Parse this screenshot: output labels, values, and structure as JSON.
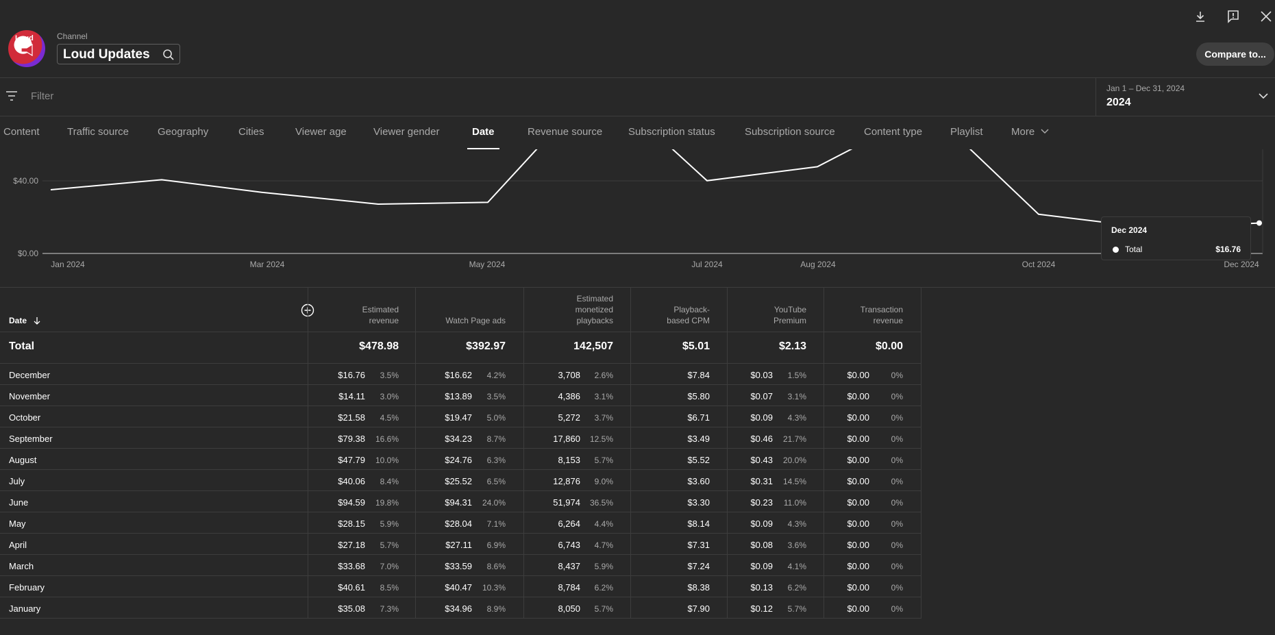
{
  "header": {
    "channel_label": "Channel",
    "channel_name": "Loud Updates",
    "avatar_text": "Loud",
    "compare_label": "Compare to..."
  },
  "filter": {
    "placeholder": "Filter"
  },
  "date_picker": {
    "range": "Jan 1 – Dec 31, 2024",
    "value": "2024"
  },
  "tabs": [
    {
      "label": "Content",
      "active": false
    },
    {
      "label": "Traffic source",
      "active": false
    },
    {
      "label": "Geography",
      "active": false
    },
    {
      "label": "Cities",
      "active": false
    },
    {
      "label": "Viewer age",
      "active": false
    },
    {
      "label": "Viewer gender",
      "active": false
    },
    {
      "label": "Date",
      "active": true
    },
    {
      "label": "Revenue source",
      "active": false
    },
    {
      "label": "Subscription status",
      "active": false
    },
    {
      "label": "Subscription source",
      "active": false
    },
    {
      "label": "Content type",
      "active": false
    },
    {
      "label": "Playlist",
      "active": false
    },
    {
      "label": "More",
      "active": false
    }
  ],
  "chart_data": {
    "type": "line",
    "x": [
      "Jan 2024",
      "Feb 2024",
      "Mar 2024",
      "Apr 2024",
      "May 2024",
      "Jun 2024",
      "Jul 2024",
      "Aug 2024",
      "Sep 2024",
      "Oct 2024",
      "Nov 2024",
      "Dec 2024"
    ],
    "x_tick_labels": [
      "Jan 2024",
      "Mar 2024",
      "May 2024",
      "Jul 2024",
      "Aug 2024",
      "Oct 2024",
      "Dec 2024"
    ],
    "series": [
      {
        "name": "Total",
        "values": [
          35.08,
          40.61,
          33.68,
          27.18,
          28.15,
          94.59,
          40.06,
          47.79,
          79.38,
          21.58,
          14.11,
          16.76
        ]
      }
    ],
    "y_tick_labels": [
      "$0.00",
      "$40.00"
    ],
    "grid": true,
    "tooltip": {
      "title": "Dec 2024",
      "label": "Total",
      "value": "$16.76"
    }
  },
  "table": {
    "date_header": "Date",
    "columns": [
      {
        "label": "Estimated revenue",
        "total": "$478.98"
      },
      {
        "label": "Watch Page ads",
        "total": "$392.97"
      },
      {
        "label": "Estimated monetized playbacks",
        "total": "142,507"
      },
      {
        "label": "Playback-based CPM",
        "total": "$5.01"
      },
      {
        "label": "YouTube Premium",
        "total": "$2.13"
      },
      {
        "label": "Transaction revenue",
        "total": "$0.00"
      }
    ],
    "total_label": "Total",
    "rows": [
      {
        "month": "December",
        "cells": [
          [
            "$16.76",
            "3.5%"
          ],
          [
            "$16.62",
            "4.2%"
          ],
          [
            "3,708",
            "2.6%"
          ],
          [
            "$7.84",
            ""
          ],
          [
            "$0.03",
            "1.5%"
          ],
          [
            "$0.00",
            "0%"
          ]
        ]
      },
      {
        "month": "November",
        "cells": [
          [
            "$14.11",
            "3.0%"
          ],
          [
            "$13.89",
            "3.5%"
          ],
          [
            "4,386",
            "3.1%"
          ],
          [
            "$5.80",
            ""
          ],
          [
            "$0.07",
            "3.1%"
          ],
          [
            "$0.00",
            "0%"
          ]
        ]
      },
      {
        "month": "October",
        "cells": [
          [
            "$21.58",
            "4.5%"
          ],
          [
            "$19.47",
            "5.0%"
          ],
          [
            "5,272",
            "3.7%"
          ],
          [
            "$6.71",
            ""
          ],
          [
            "$0.09",
            "4.3%"
          ],
          [
            "$0.00",
            "0%"
          ]
        ]
      },
      {
        "month": "September",
        "cells": [
          [
            "$79.38",
            "16.6%"
          ],
          [
            "$34.23",
            "8.7%"
          ],
          [
            "17,860",
            "12.5%"
          ],
          [
            "$3.49",
            ""
          ],
          [
            "$0.46",
            "21.7%"
          ],
          [
            "$0.00",
            "0%"
          ]
        ]
      },
      {
        "month": "August",
        "cells": [
          [
            "$47.79",
            "10.0%"
          ],
          [
            "$24.76",
            "6.3%"
          ],
          [
            "8,153",
            "5.7%"
          ],
          [
            "$5.52",
            ""
          ],
          [
            "$0.43",
            "20.0%"
          ],
          [
            "$0.00",
            "0%"
          ]
        ]
      },
      {
        "month": "July",
        "cells": [
          [
            "$40.06",
            "8.4%"
          ],
          [
            "$25.52",
            "6.5%"
          ],
          [
            "12,876",
            "9.0%"
          ],
          [
            "$3.60",
            ""
          ],
          [
            "$0.31",
            "14.5%"
          ],
          [
            "$0.00",
            "0%"
          ]
        ]
      },
      {
        "month": "June",
        "cells": [
          [
            "$94.59",
            "19.8%"
          ],
          [
            "$94.31",
            "24.0%"
          ],
          [
            "51,974",
            "36.5%"
          ],
          [
            "$3.30",
            ""
          ],
          [
            "$0.23",
            "11.0%"
          ],
          [
            "$0.00",
            "0%"
          ]
        ]
      },
      {
        "month": "May",
        "cells": [
          [
            "$28.15",
            "5.9%"
          ],
          [
            "$28.04",
            "7.1%"
          ],
          [
            "6,264",
            "4.4%"
          ],
          [
            "$8.14",
            ""
          ],
          [
            "$0.09",
            "4.3%"
          ],
          [
            "$0.00",
            "0%"
          ]
        ]
      },
      {
        "month": "April",
        "cells": [
          [
            "$27.18",
            "5.7%"
          ],
          [
            "$27.11",
            "6.9%"
          ],
          [
            "6,743",
            "4.7%"
          ],
          [
            "$7.31",
            ""
          ],
          [
            "$0.08",
            "3.6%"
          ],
          [
            "$0.00",
            "0%"
          ]
        ]
      },
      {
        "month": "March",
        "cells": [
          [
            "$33.68",
            "7.0%"
          ],
          [
            "$33.59",
            "8.6%"
          ],
          [
            "8,437",
            "5.9%"
          ],
          [
            "$7.24",
            ""
          ],
          [
            "$0.09",
            "4.1%"
          ],
          [
            "$0.00",
            "0%"
          ]
        ]
      },
      {
        "month": "February",
        "cells": [
          [
            "$40.61",
            "8.5%"
          ],
          [
            "$40.47",
            "10.3%"
          ],
          [
            "8,784",
            "6.2%"
          ],
          [
            "$8.38",
            ""
          ],
          [
            "$0.13",
            "6.2%"
          ],
          [
            "$0.00",
            "0%"
          ]
        ]
      },
      {
        "month": "January",
        "cells": [
          [
            "$35.08",
            "7.3%"
          ],
          [
            "$34.96",
            "8.9%"
          ],
          [
            "8,050",
            "5.7%"
          ],
          [
            "$7.90",
            ""
          ],
          [
            "$0.12",
            "5.7%"
          ],
          [
            "$0.00",
            "0%"
          ]
        ]
      }
    ]
  }
}
